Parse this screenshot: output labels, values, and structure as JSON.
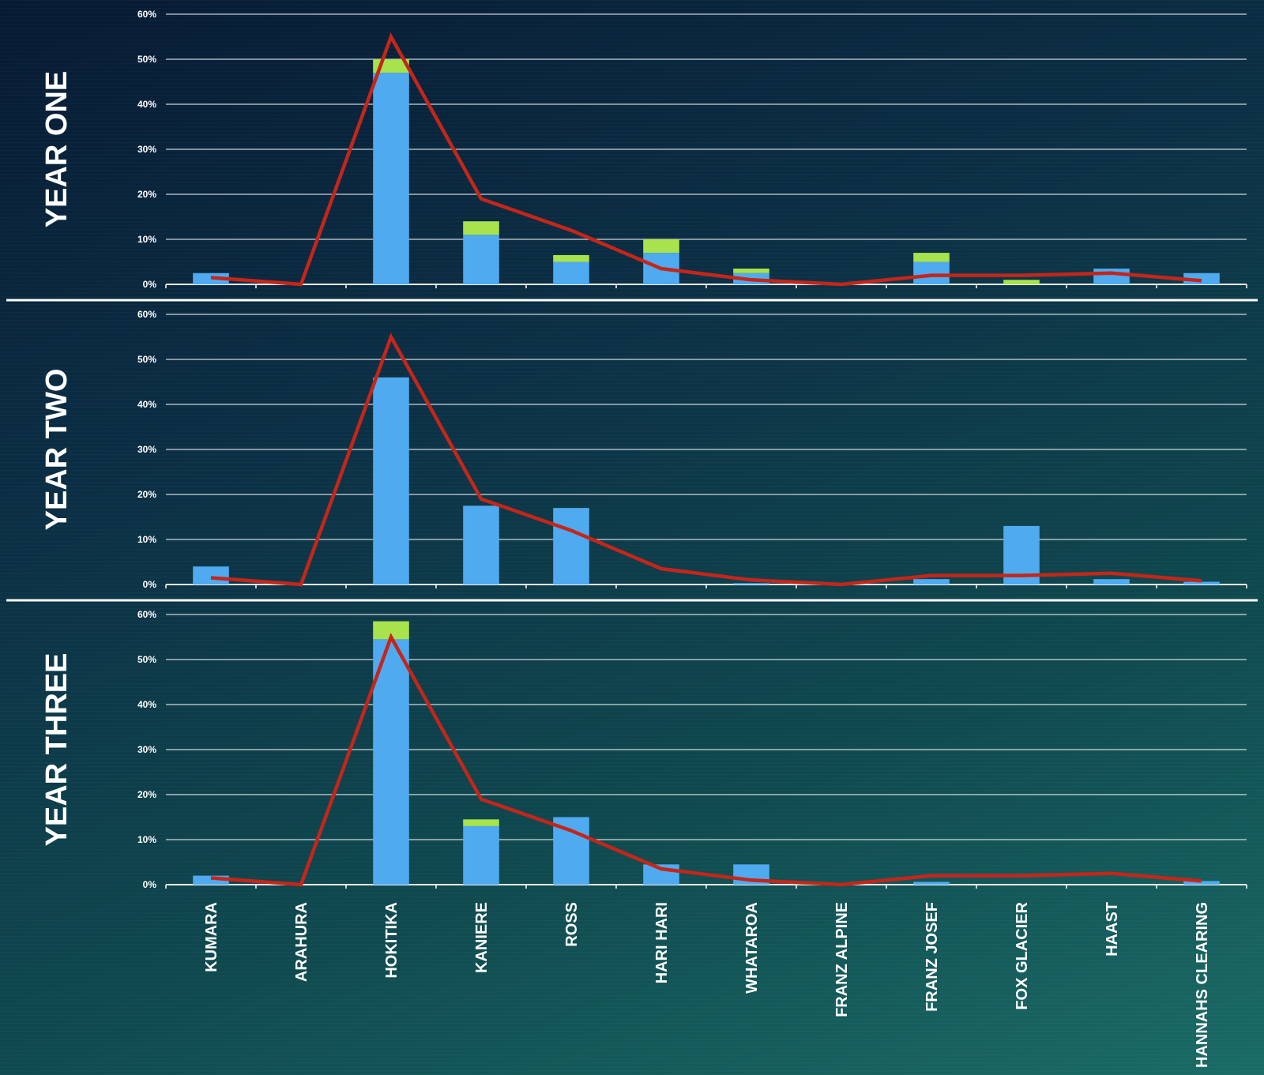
{
  "colors": {
    "primary_bar": "#4faaf0",
    "secondary_bar": "#a8e34d",
    "trend_line": "#c4261a",
    "grid": "#ffffff",
    "text": "#ffffff"
  },
  "chart_data": [
    {
      "type": "bar",
      "stacked": true,
      "panel_label": "YEAR ONE",
      "categories": [
        "KUMARA",
        "ARAHURA",
        "HOKITIKA",
        "KANIERE",
        "ROSS",
        "HARI HARI",
        "WHATAROA",
        "FRANZ ALPINE",
        "FRANZ JOSEF",
        "FOX GLACIER",
        "HAAST",
        "HANNAHS CLEARING"
      ],
      "series": [
        {
          "kind": "bar",
          "values": [
            2.5,
            0,
            47,
            11,
            5,
            7,
            2.5,
            0,
            5,
            0,
            3.5,
            2.5
          ]
        },
        {
          "kind": "bar",
          "values": [
            0,
            0,
            3,
            3,
            1.5,
            3,
            1,
            0,
            2,
            1,
            0,
            0
          ]
        },
        {
          "kind": "line",
          "values": [
            1.5,
            0,
            55,
            19,
            12,
            3.5,
            1,
            0,
            2,
            2,
            2.5,
            0.8
          ]
        }
      ],
      "yticks": [
        "0%",
        "10%",
        "20%",
        "30%",
        "40%",
        "50%",
        "60%"
      ],
      "ylim": [
        0,
        60
      ],
      "grid": true
    },
    {
      "type": "bar",
      "stacked": true,
      "panel_label": "YEAR TWO",
      "categories": [
        "KUMARA",
        "ARAHURA",
        "HOKITIKA",
        "KANIERE",
        "ROSS",
        "HARI HARI",
        "WHATAROA",
        "FRANZ ALPINE",
        "FRANZ JOSEF",
        "FOX GLACIER",
        "HAAST",
        "HANNAHS CLEARING"
      ],
      "series": [
        {
          "kind": "bar",
          "values": [
            4,
            0,
            46,
            17.5,
            17,
            0,
            0.3,
            0,
            1.2,
            13,
            1.2,
            0.6
          ]
        },
        {
          "kind": "bar",
          "values": [
            0,
            0,
            0,
            0,
            0,
            0,
            0,
            0,
            0,
            0,
            0,
            0
          ]
        },
        {
          "kind": "line",
          "values": [
            1.5,
            0,
            55,
            19,
            12,
            3.5,
            1,
            0,
            2,
            2,
            2.5,
            0.8
          ]
        }
      ],
      "yticks": [
        "0%",
        "10%",
        "20%",
        "30%",
        "40%",
        "50%",
        "60%"
      ],
      "ylim": [
        0,
        60
      ],
      "grid": true
    },
    {
      "type": "bar",
      "stacked": true,
      "panel_label": "YEAR THREE",
      "categories": [
        "KUMARA",
        "ARAHURA",
        "HOKITIKA",
        "KANIERE",
        "ROSS",
        "HARI HARI",
        "WHATAROA",
        "FRANZ ALPINE",
        "FRANZ JOSEF",
        "FOX GLACIER",
        "HAAST",
        "HANNAHS CLEARING"
      ],
      "series": [
        {
          "kind": "bar",
          "values": [
            2,
            0,
            54.5,
            13,
            15,
            4.5,
            4.5,
            0,
            0.6,
            0,
            0,
            0.8
          ]
        },
        {
          "kind": "bar",
          "values": [
            0,
            0,
            4,
            1.5,
            0,
            0,
            0,
            0,
            0,
            0,
            0,
            0
          ]
        },
        {
          "kind": "line",
          "values": [
            1.5,
            0,
            55,
            19,
            12,
            3.5,
            1,
            0,
            2,
            2,
            2.5,
            0.8
          ]
        }
      ],
      "yticks": [
        "0%",
        "10%",
        "20%",
        "30%",
        "40%",
        "50%",
        "60%"
      ],
      "ylim": [
        0,
        60
      ],
      "grid": true
    }
  ]
}
